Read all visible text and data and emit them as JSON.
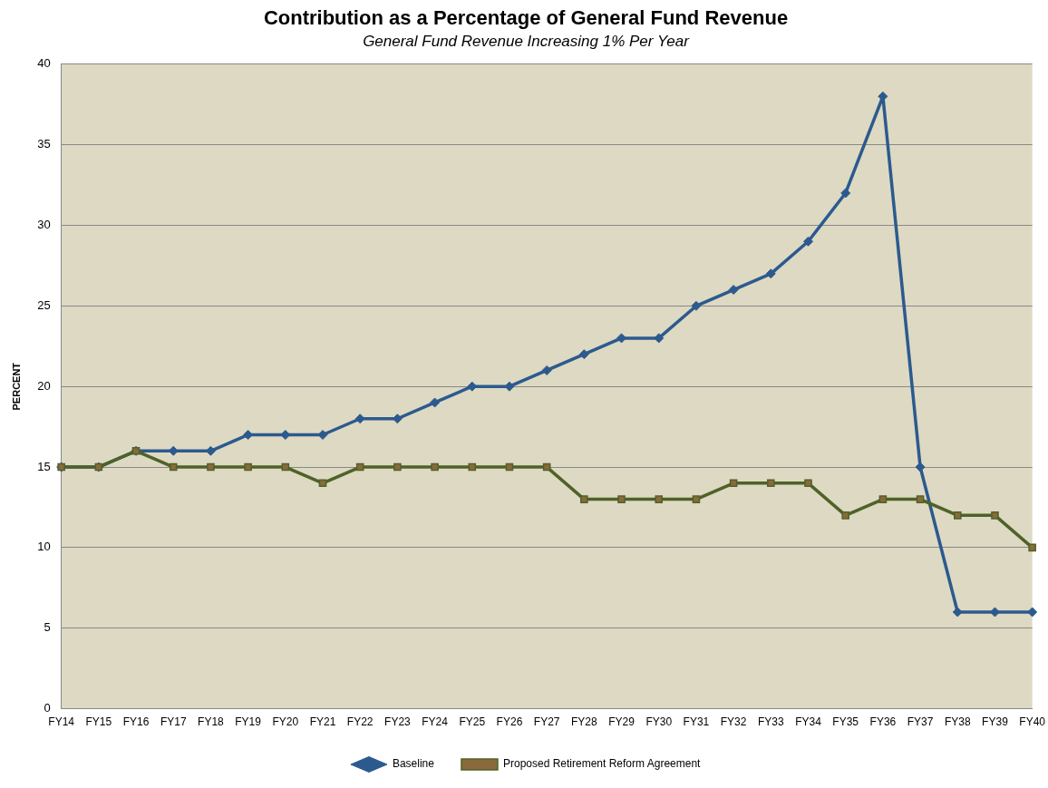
{
  "chart_data": {
    "type": "line",
    "title": "Contribution as a Percentage of General Fund Revenue",
    "subtitle": "General Fund Revenue Increasing 1% Per Year",
    "ylabel": "PERCENT",
    "categories": [
      "FY14",
      "FY15",
      "FY16",
      "FY17",
      "FY18",
      "FY19",
      "FY20",
      "FY21",
      "FY22",
      "FY23",
      "FY24",
      "FY25",
      "FY26",
      "FY27",
      "FY28",
      "FY29",
      "FY30",
      "FY31",
      "FY32",
      "FY33",
      "FY34",
      "FY35",
      "FY36",
      "FY37",
      "FY38",
      "FY39",
      "FY40"
    ],
    "series": [
      {
        "name": "Baseline",
        "color": "#2c5a8e",
        "marker": "diamond",
        "values": [
          15,
          15,
          16,
          16,
          16,
          17,
          17,
          17,
          18,
          18,
          19,
          20,
          20,
          21,
          22,
          23,
          23,
          25,
          26,
          27,
          29,
          32,
          38,
          15,
          6,
          6,
          6
        ]
      },
      {
        "name": "Proposed Retirement Reform Agreement",
        "color": "#4f6228",
        "marker": "square",
        "values": [
          15,
          15,
          16,
          15,
          15,
          15,
          15,
          14,
          15,
          15,
          15,
          15,
          15,
          15,
          13,
          13,
          13,
          13,
          14,
          14,
          14,
          12,
          13,
          13,
          12,
          12,
          10
        ]
      }
    ],
    "ylim": [
      0,
      40
    ],
    "yticks": [
      0,
      5,
      10,
      15,
      20,
      25,
      30,
      35,
      40
    ],
    "grid": "y",
    "legend": "bottom"
  }
}
